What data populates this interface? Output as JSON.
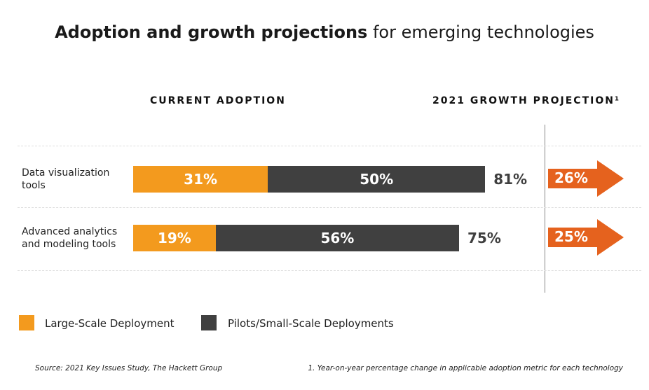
{
  "chart_data": {
    "type": "bar",
    "orientation": "horizontal",
    "stacked": true,
    "title_bold": "Adoption and growth projections",
    "title_rest": " for emerging technologies",
    "section_headers": {
      "current": "CURRENT ADOPTION",
      "growth": "2021 GROWTH PROJECTION¹"
    },
    "categories": [
      "Data visualization tools",
      "Advanced analytics and modeling tools"
    ],
    "series": [
      {
        "name": "Large-Scale Deployment",
        "color": "#F39A1E",
        "values": [
          31,
          19
        ],
        "labels": [
          "31%",
          "19%"
        ]
      },
      {
        "name": "Pilots/Small-Scale Deployments",
        "color": "#404040",
        "values": [
          50,
          56
        ],
        "labels": [
          "50%",
          "56%"
        ]
      }
    ],
    "totals": [
      "81%",
      "75%"
    ],
    "growth": {
      "color": "#E5621E",
      "values": [
        26,
        25
      ],
      "labels": [
        "26%",
        "25%"
      ]
    },
    "source": "Source: 2021 Key Issues Study, The Hackett Group",
    "footnote": "1. Year-on-year percentage change in applicable adoption metric for each technology"
  }
}
